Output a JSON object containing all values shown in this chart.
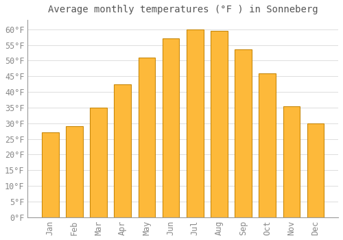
{
  "title": "Average monthly temperatures (°F ) in Sonneberg",
  "months": [
    "Jan",
    "Feb",
    "Mar",
    "Apr",
    "May",
    "Jun",
    "Jul",
    "Aug",
    "Sep",
    "Oct",
    "Nov",
    "Dec"
  ],
  "values": [
    27,
    29,
    35,
    42.5,
    51,
    57,
    60,
    59.5,
    53.5,
    46,
    35.5,
    30
  ],
  "bar_color": "#FDB93A",
  "bar_edge_color": "#C8880A",
  "background_color": "#FFFFFF",
  "grid_color": "#DDDDDD",
  "text_color": "#888888",
  "title_color": "#555555",
  "ylim": [
    0,
    63
  ],
  "yticks": [
    0,
    5,
    10,
    15,
    20,
    25,
    30,
    35,
    40,
    45,
    50,
    55,
    60
  ],
  "title_fontsize": 10,
  "tick_fontsize": 8.5,
  "bar_width": 0.7
}
